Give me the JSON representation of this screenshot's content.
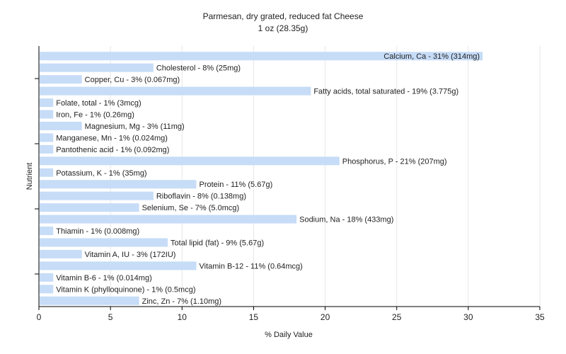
{
  "chart_data": {
    "type": "bar",
    "orientation": "horizontal",
    "title": "Parmesan, dry grated, reduced fat Cheese",
    "subtitle": "1 oz (28.35g)",
    "xlabel": "% Daily Value",
    "ylabel": "Nutrient",
    "xlim": [
      0,
      35
    ],
    "xticks": [
      0,
      5,
      10,
      15,
      20,
      25,
      30,
      35
    ],
    "grid": true,
    "bar_color": "#c6dcf7",
    "categories": [
      "Calcium, Ca",
      "Cholesterol",
      "Copper, Cu",
      "Fatty acids, total saturated",
      "Folate, total",
      "Iron, Fe",
      "Magnesium, Mg",
      "Manganese, Mn",
      "Pantothenic acid",
      "Phosphorus, P",
      "Potassium, K",
      "Protein",
      "Riboflavin",
      "Selenium, Se",
      "Sodium, Na",
      "Thiamin",
      "Total lipid (fat)",
      "Vitamin A, IU",
      "Vitamin B-12",
      "Vitamin B-6",
      "Vitamin K (phylloquinone)",
      "Zinc, Zn"
    ],
    "values": [
      31,
      8,
      3,
      19,
      1,
      1,
      3,
      1,
      1,
      21,
      1,
      11,
      8,
      7,
      18,
      1,
      9,
      3,
      11,
      1,
      1,
      7
    ],
    "labels": [
      "Calcium, Ca - 31% (314mg)",
      "Cholesterol - 8% (25mg)",
      "Copper, Cu - 3% (0.067mg)",
      "Fatty acids, total saturated - 19% (3.775g)",
      "Folate, total - 1% (3mcg)",
      "Iron, Fe - 1% (0.26mg)",
      "Magnesium, Mg - 3% (11mg)",
      "Manganese, Mn - 1% (0.024mg)",
      "Pantothenic acid - 1% (0.092mg)",
      "Phosphorus, P - 21% (207mg)",
      "Potassium, K - 1% (35mg)",
      "Protein - 11% (5.67g)",
      "Riboflavin - 8% (0.138mg)",
      "Selenium, Se - 7% (5.0mcg)",
      "Sodium, Na - 18% (433mg)",
      "Thiamin - 1% (0.008mg)",
      "Total lipid (fat) - 9% (5.67g)",
      "Vitamin A, IU - 3% (172IU)",
      "Vitamin B-12 - 11% (0.64mcg)",
      "Vitamin B-6 - 1% (0.014mg)",
      "Vitamin K (phylloquinone) - 1% (0.5mcg)",
      "Zinc, Zn - 7% (1.10mg)"
    ]
  }
}
